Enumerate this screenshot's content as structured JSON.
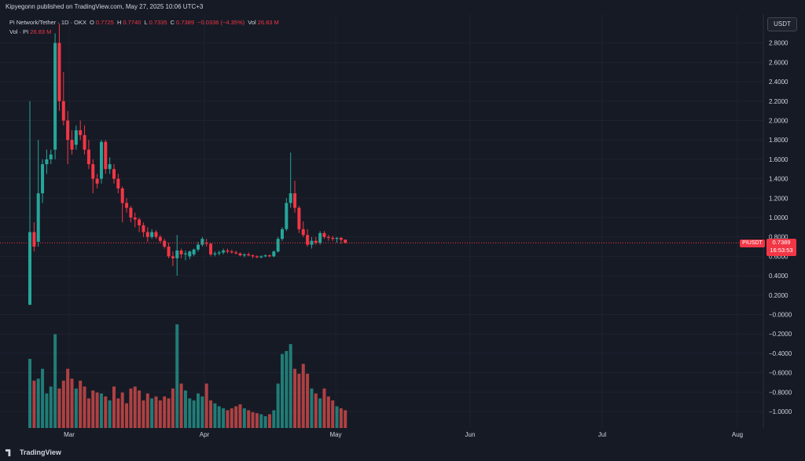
{
  "header": {
    "published": "Kipyegonn published on TradingView.com, May 27, 2025 10:06 UTC+3"
  },
  "legend": {
    "symbol": "Pi Network/Tether · 1D · OKX",
    "o_label": "O",
    "o_value": "0.7725",
    "h_label": "H",
    "h_value": "0.7740",
    "l_label": "L",
    "l_value": "0.7335",
    "c_label": "C",
    "c_value": "0.7389",
    "change": "−0.0336 (−4.35%)",
    "vol_label": "Vol",
    "vol_value": "26.83 M",
    "vol_pi_label": "Vol · PI",
    "vol_pi_value": "26.83 M"
  },
  "currency_button": "USDT",
  "price_tag": {
    "symbol": "PIUSDT",
    "price": "0.7389",
    "countdown": "16:53:53"
  },
  "footer": {
    "logo_text": "TradingView"
  },
  "colors": {
    "up": "#26a69a",
    "down": "#f23645",
    "up_volume": "#26a69a",
    "down_volume": "#ef5350"
  },
  "chart_data": {
    "type": "candlestick",
    "y_ticks": [
      "2.8000",
      "2.6000",
      "2.4000",
      "2.2000",
      "2.0000",
      "1.8000",
      "1.6000",
      "1.4000",
      "1.2000",
      "1.0000",
      "0.8000",
      "0.6000",
      "0.4000",
      "0.2000",
      "−0.0000",
      "−0.2000",
      "−0.4000",
      "−0.6000",
      "−0.8000",
      "−1.0000"
    ],
    "ylim": [
      -1.2,
      3.0
    ],
    "x_ticks": [
      "Mar",
      "Apr",
      "May",
      "Jun",
      "Jul",
      "Aug"
    ],
    "last_price": 0.7389,
    "candles": [
      [
        0.1,
        2.2,
        0.1,
        0.85
      ],
      [
        0.85,
        0.95,
        0.65,
        0.7
      ],
      [
        0.75,
        1.8,
        0.7,
        1.25
      ],
      [
        1.25,
        1.6,
        1.15,
        1.55
      ],
      [
        1.55,
        1.7,
        1.45,
        1.6
      ],
      [
        1.6,
        1.7,
        1.55,
        1.65
      ],
      [
        1.7,
        2.9,
        1.6,
        2.8
      ],
      [
        2.8,
        3.0,
        2.1,
        2.2
      ],
      [
        2.2,
        2.5,
        1.95,
        2.0
      ],
      [
        2.0,
        2.1,
        1.55,
        1.8
      ],
      [
        1.8,
        1.9,
        1.65,
        1.7
      ],
      [
        1.75,
        1.95,
        1.7,
        1.9
      ],
      [
        1.9,
        2.0,
        1.8,
        1.85
      ],
      [
        1.85,
        1.95,
        1.65,
        1.7
      ],
      [
        1.7,
        1.8,
        1.5,
        1.55
      ],
      [
        1.55,
        1.6,
        1.25,
        1.4
      ],
      [
        1.4,
        1.45,
        1.3,
        1.35
      ],
      [
        1.4,
        1.8,
        1.35,
        1.78
      ],
      [
        1.78,
        1.8,
        1.45,
        1.5
      ],
      [
        1.5,
        1.62,
        1.45,
        1.55
      ],
      [
        1.5,
        1.55,
        1.35,
        1.4
      ],
      [
        1.4,
        1.45,
        1.25,
        1.3
      ],
      [
        1.3,
        1.32,
        0.95,
        1.15
      ],
      [
        1.15,
        1.2,
        1.05,
        1.1
      ],
      [
        1.1,
        1.12,
        0.95,
        1.0
      ],
      [
        1.0,
        1.05,
        0.9,
        0.98
      ],
      [
        0.98,
        1.0,
        0.85,
        0.92
      ],
      [
        0.92,
        0.95,
        0.8,
        0.85
      ],
      [
        0.85,
        0.9,
        0.75,
        0.8
      ],
      [
        0.8,
        0.88,
        0.78,
        0.85
      ],
      [
        0.85,
        0.87,
        0.78,
        0.8
      ],
      [
        0.8,
        0.82,
        0.74,
        0.76
      ],
      [
        0.76,
        0.78,
        0.68,
        0.7
      ],
      [
        0.7,
        0.74,
        0.58,
        0.6
      ],
      [
        0.6,
        0.65,
        0.5,
        0.58
      ],
      [
        0.58,
        0.82,
        0.4,
        0.66
      ],
      [
        0.66,
        0.68,
        0.58,
        0.62
      ],
      [
        0.62,
        0.66,
        0.56,
        0.63
      ],
      [
        0.6,
        0.66,
        0.57,
        0.65
      ],
      [
        0.62,
        0.68,
        0.6,
        0.67
      ],
      [
        0.67,
        0.75,
        0.65,
        0.72
      ],
      [
        0.72,
        0.8,
        0.7,
        0.78
      ],
      [
        0.74,
        0.78,
        0.7,
        0.73
      ],
      [
        0.73,
        0.74,
        0.6,
        0.62
      ],
      [
        0.62,
        0.65,
        0.6,
        0.63
      ],
      [
        0.63,
        0.66,
        0.61,
        0.64
      ],
      [
        0.64,
        0.68,
        0.62,
        0.66
      ],
      [
        0.66,
        0.68,
        0.63,
        0.65
      ],
      [
        0.65,
        0.67,
        0.63,
        0.64
      ],
      [
        0.64,
        0.66,
        0.62,
        0.63
      ],
      [
        0.63,
        0.64,
        0.6,
        0.61
      ],
      [
        0.61,
        0.63,
        0.59,
        0.62
      ],
      [
        0.62,
        0.64,
        0.6,
        0.61
      ],
      [
        0.61,
        0.62,
        0.58,
        0.6
      ],
      [
        0.6,
        0.61,
        0.58,
        0.59
      ],
      [
        0.59,
        0.61,
        0.58,
        0.6
      ],
      [
        0.6,
        0.62,
        0.59,
        0.61
      ],
      [
        0.61,
        0.62,
        0.59,
        0.6
      ],
      [
        0.6,
        0.66,
        0.59,
        0.65
      ],
      [
        0.65,
        0.8,
        0.64,
        0.78
      ],
      [
        0.78,
        0.9,
        0.76,
        0.88
      ],
      [
        0.88,
        1.2,
        0.86,
        1.15
      ],
      [
        1.15,
        1.67,
        1.1,
        1.25
      ],
      [
        1.25,
        1.38,
        1.05,
        1.1
      ],
      [
        1.1,
        1.12,
        0.84,
        0.88
      ],
      [
        0.88,
        0.96,
        0.8,
        0.82
      ],
      [
        0.82,
        0.88,
        0.7,
        0.72
      ],
      [
        0.72,
        0.8,
        0.68,
        0.76
      ],
      [
        0.76,
        0.8,
        0.72,
        0.74
      ],
      [
        0.74,
        0.86,
        0.72,
        0.84
      ],
      [
        0.84,
        0.86,
        0.78,
        0.8
      ],
      [
        0.8,
        0.82,
        0.76,
        0.79
      ],
      [
        0.79,
        0.81,
        0.76,
        0.78
      ],
      [
        0.78,
        0.8,
        0.74,
        0.79
      ],
      [
        0.79,
        0.8,
        0.73,
        0.77
      ],
      [
        0.7725,
        0.774,
        0.7335,
        0.7389
      ]
    ],
    "volume": [
      70,
      48,
      50,
      60,
      35,
      42,
      95,
      40,
      48,
      60,
      50,
      40,
      48,
      42,
      30,
      38,
      36,
      35,
      32,
      28,
      42,
      30,
      36,
      25,
      40,
      42,
      38,
      28,
      35,
      30,
      32,
      28,
      32,
      30,
      40,
      105,
      45,
      38,
      30,
      28,
      35,
      32,
      45,
      28,
      25,
      22,
      20,
      18,
      20,
      22,
      24,
      20,
      18,
      16,
      15,
      14,
      12,
      14,
      18,
      45,
      75,
      78,
      85,
      60,
      55,
      65,
      55,
      40,
      35,
      30,
      40,
      32,
      28,
      22,
      20,
      18
    ]
  }
}
